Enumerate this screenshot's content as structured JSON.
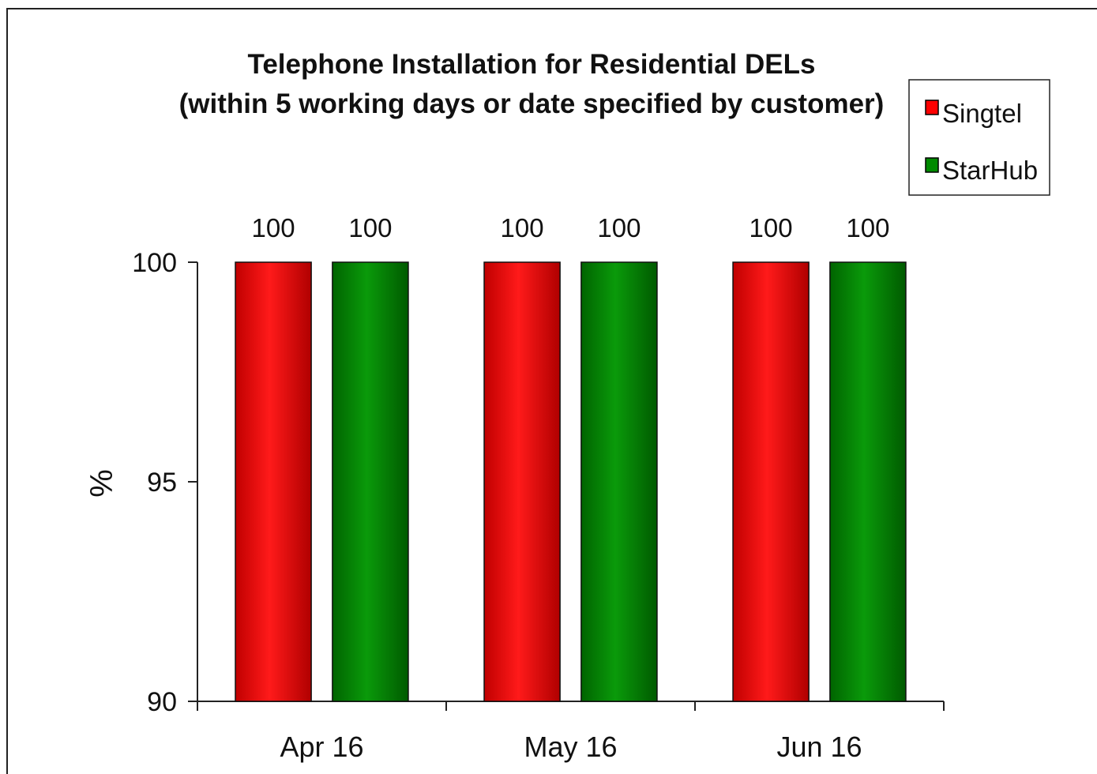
{
  "chart_data": {
    "type": "bar",
    "title": "Telephone Installation for Residential DELs",
    "subtitle": "(within 5 working days or date specified by customer)",
    "xlabel": "",
    "ylabel": "%",
    "ylim": [
      90,
      100
    ],
    "yticks": [
      "90",
      "95",
      "100"
    ],
    "categories": [
      "Apr 16",
      "May 16",
      "Jun 16"
    ],
    "series": [
      {
        "name": "Singtel",
        "color": "#ff0000",
        "values": [
          100,
          100,
          100
        ]
      },
      {
        "name": "StarHub",
        "color": "#008a00",
        "values": [
          100,
          100,
          100
        ]
      }
    ],
    "data_labels": true,
    "legend_position": "top-right",
    "grid": false
  }
}
